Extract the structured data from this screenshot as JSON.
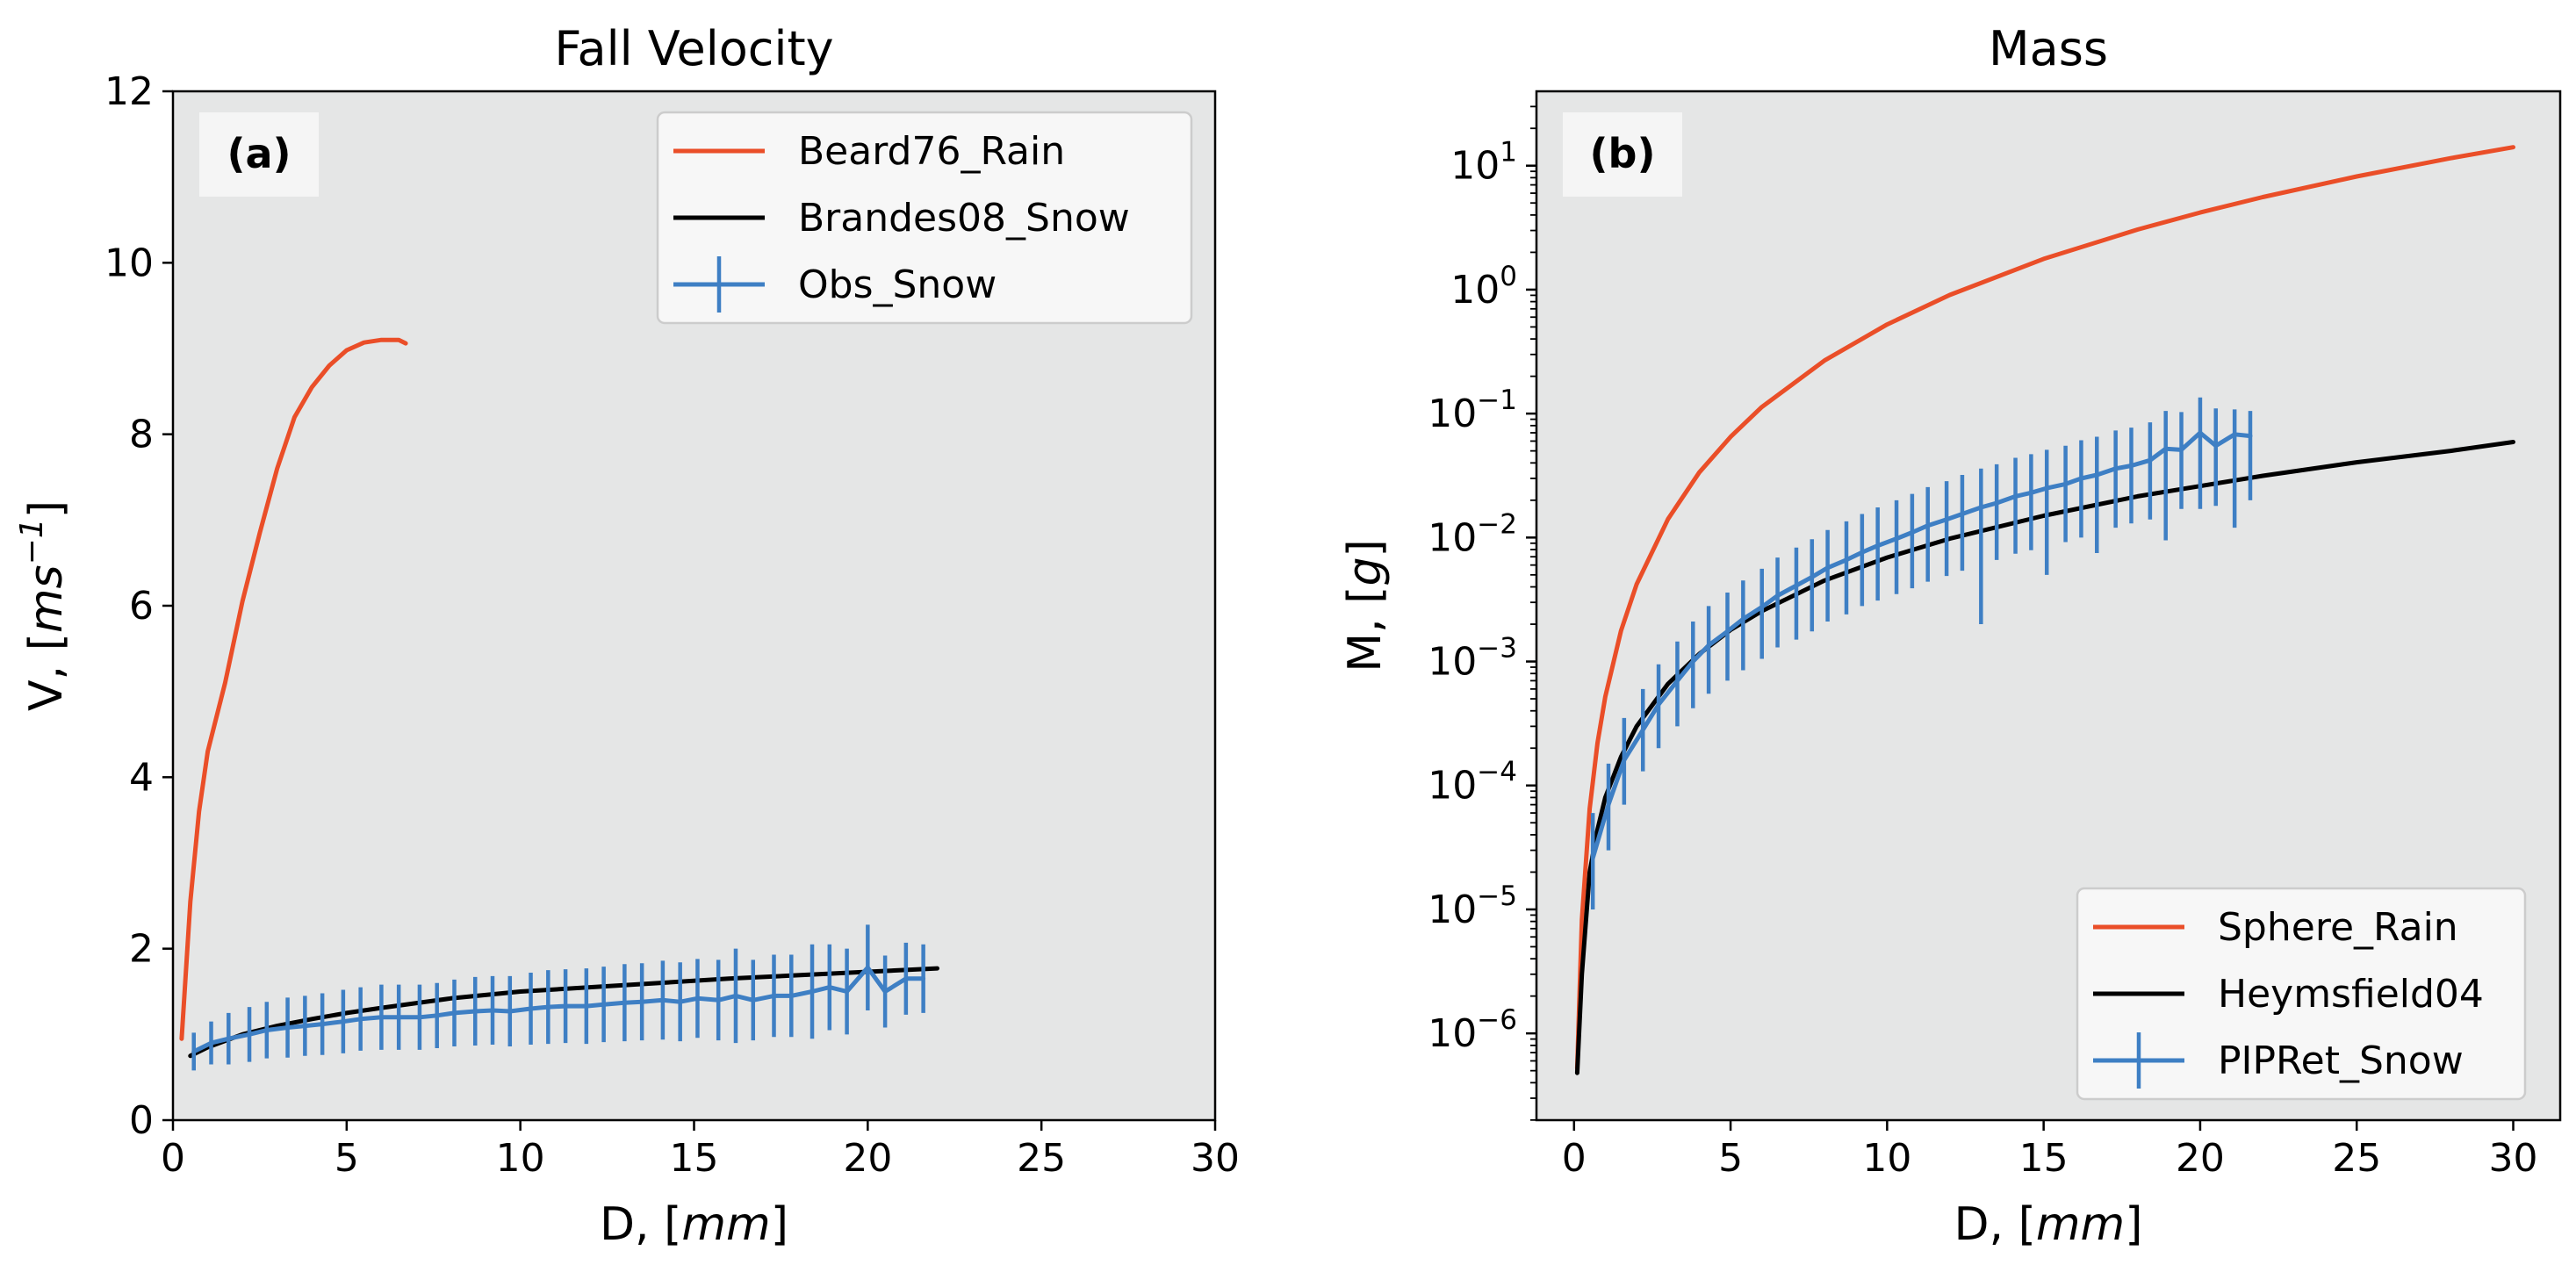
{
  "chart_data": [
    {
      "type": "line",
      "title": "Fall Velocity",
      "panel_label": "(a)",
      "xlabel": {
        "prefix": "D, [",
        "var": "mm",
        "suffix": "]"
      },
      "ylabel": {
        "prefix": "V, [",
        "var": "ms",
        "sup": "−1",
        "suffix": "]"
      },
      "xlim": [
        0,
        30
      ],
      "ylim": [
        0,
        12
      ],
      "xticks": [
        0,
        5,
        10,
        15,
        20,
        25,
        30
      ],
      "xtick_labels": [
        "0",
        "5",
        "10",
        "15",
        "20",
        "25",
        "30"
      ],
      "yticks": [
        0,
        2,
        4,
        6,
        8,
        10,
        12
      ],
      "ytick_labels": [
        "0",
        "2",
        "4",
        "6",
        "8",
        "10",
        "12"
      ],
      "yscale": "linear",
      "legend_position": "top-right",
      "background": "#e5e6e6",
      "series": [
        {
          "name": "Beard76_Rain",
          "color": "#ea4e28",
          "kind": "line",
          "x": [
            0.25,
            0.5,
            0.75,
            1.0,
            1.5,
            2.0,
            2.5,
            3.0,
            3.5,
            4.0,
            4.5,
            5.0,
            5.5,
            6.0,
            6.5,
            6.7
          ],
          "y": [
            0.95,
            2.55,
            3.6,
            4.3,
            5.1,
            6.05,
            6.85,
            7.6,
            8.2,
            8.55,
            8.8,
            8.98,
            9.07,
            9.1,
            9.1,
            9.06
          ]
        },
        {
          "name": "Brandes08_Snow",
          "color": "#000000",
          "kind": "line",
          "x": [
            0.5,
            1.0,
            2.0,
            3.0,
            4.0,
            5.0,
            6.0,
            8.0,
            10.0,
            12.0,
            14.0,
            16.0,
            18.0,
            20.0,
            22.0
          ],
          "y": [
            0.75,
            0.85,
            1.0,
            1.1,
            1.18,
            1.25,
            1.31,
            1.42,
            1.5,
            1.55,
            1.6,
            1.65,
            1.69,
            1.73,
            1.77
          ]
        },
        {
          "name": "Obs_Snow",
          "color": "#3e7fc4",
          "kind": "errorbar",
          "x": [
            0.6,
            1.1,
            1.6,
            2.2,
            2.7,
            3.3,
            3.8,
            4.3,
            4.9,
            5.4,
            6.0,
            6.5,
            7.1,
            7.6,
            8.1,
            8.7,
            9.2,
            9.7,
            10.3,
            10.8,
            11.3,
            11.9,
            12.4,
            13.0,
            13.5,
            14.1,
            14.6,
            15.1,
            15.7,
            16.2,
            16.7,
            17.3,
            17.8,
            18.4,
            18.9,
            19.4,
            20.0,
            20.5,
            21.1,
            21.6
          ],
          "y": [
            0.8,
            0.9,
            0.95,
            1.0,
            1.05,
            1.08,
            1.1,
            1.12,
            1.15,
            1.18,
            1.2,
            1.2,
            1.2,
            1.22,
            1.25,
            1.27,
            1.28,
            1.27,
            1.3,
            1.32,
            1.33,
            1.33,
            1.35,
            1.37,
            1.38,
            1.4,
            1.38,
            1.42,
            1.4,
            1.45,
            1.4,
            1.45,
            1.45,
            1.5,
            1.55,
            1.5,
            1.78,
            1.5,
            1.65,
            1.65
          ],
          "yerr": [
            0.22,
            0.25,
            0.3,
            0.32,
            0.33,
            0.35,
            0.35,
            0.36,
            0.37,
            0.37,
            0.38,
            0.38,
            0.38,
            0.38,
            0.39,
            0.4,
            0.4,
            0.41,
            0.42,
            0.43,
            0.43,
            0.44,
            0.44,
            0.45,
            0.45,
            0.46,
            0.46,
            0.46,
            0.47,
            0.55,
            0.47,
            0.48,
            0.48,
            0.55,
            0.5,
            0.5,
            0.5,
            0.42,
            0.42,
            0.4
          ]
        }
      ]
    },
    {
      "type": "line",
      "title": "Mass",
      "panel_label": "(b)",
      "xlabel": {
        "prefix": "D, [",
        "var": "mm",
        "suffix": "]"
      },
      "ylabel": {
        "prefix": "M, [",
        "var": "g",
        "sup": "",
        "suffix": "]"
      },
      "xlim": [
        -1.2,
        31.5
      ],
      "ylim": [
        -6.7,
        1.6
      ],
      "yscale": "log",
      "xticks": [
        0,
        5,
        10,
        15,
        20,
        25,
        30
      ],
      "xtick_labels": [
        "0",
        "5",
        "10",
        "15",
        "20",
        "25",
        "30"
      ],
      "yticks": [
        -6,
        -5,
        -4,
        -3,
        -2,
        -1,
        0,
        1
      ],
      "ytick_labels": [
        {
          "base": "10",
          "exp": "−6"
        },
        {
          "base": "10",
          "exp": "−5"
        },
        {
          "base": "10",
          "exp": "−4"
        },
        {
          "base": "10",
          "exp": "−3"
        },
        {
          "base": "10",
          "exp": "−2"
        },
        {
          "base": "10",
          "exp": "−1"
        },
        {
          "base": "10",
          "exp": "0"
        },
        {
          "base": "10",
          "exp": "1"
        }
      ],
      "legend_position": "bottom-right",
      "background": "#e5e6e6",
      "series": [
        {
          "name": "Sphere_Rain",
          "color": "#ea4e28",
          "kind": "line",
          "x": [
            0.1,
            0.25,
            0.5,
            0.75,
            1.0,
            1.5,
            2.0,
            3.0,
            4.0,
            5.0,
            6.0,
            8.0,
            10.0,
            12.0,
            15.0,
            18.0,
            20.0,
            22.0,
            25.0,
            28.0,
            30.0
          ],
          "y": [
            5.24e-07,
            8.2e-06,
            6.5e-05,
            0.00022,
            0.00052,
            0.00177,
            0.0042,
            0.0141,
            0.0335,
            0.065,
            0.113,
            0.268,
            0.524,
            0.905,
            1.77,
            3.05,
            4.19,
            5.58,
            8.18,
            11.5,
            14.1
          ]
        },
        {
          "name": "Heymsfield04",
          "color": "#000000",
          "kind": "line",
          "x": [
            0.1,
            0.25,
            0.5,
            0.75,
            1.0,
            1.5,
            2.0,
            3.0,
            4.0,
            5.0,
            6.0,
            8.0,
            10.0,
            12.0,
            15.0,
            18.0,
            20.0,
            22.0,
            25.0,
            28.0,
            30.0
          ],
          "y": [
            4.8e-07,
            3e-06,
            2e-05,
            4.4e-05,
            8e-05,
            0.00017,
            0.0003,
            0.00066,
            0.00115,
            0.0018,
            0.00255,
            0.0045,
            0.0069,
            0.0098,
            0.015,
            0.0215,
            0.026,
            0.0315,
            0.0405,
            0.05,
            0.059
          ]
        },
        {
          "name": "PIPRet_Snow",
          "color": "#3e7fc4",
          "kind": "errorbar",
          "x": [
            0.6,
            1.1,
            1.6,
            2.2,
            2.7,
            3.3,
            3.8,
            4.3,
            4.9,
            5.4,
            6.0,
            6.5,
            7.1,
            7.6,
            8.1,
            8.7,
            9.2,
            9.7,
            10.3,
            10.8,
            11.3,
            11.9,
            12.4,
            13.0,
            13.5,
            14.1,
            14.6,
            15.1,
            15.7,
            16.2,
            16.7,
            17.3,
            17.8,
            18.4,
            18.9,
            19.4,
            20.0,
            20.5,
            21.1,
            21.6
          ],
          "y": [
            2.6e-05,
            7e-05,
            0.00016,
            0.00028,
            0.00045,
            0.0007,
            0.001,
            0.00135,
            0.00175,
            0.0022,
            0.00275,
            0.0034,
            0.0041,
            0.0048,
            0.0057,
            0.0066,
            0.0076,
            0.0086,
            0.0098,
            0.011,
            0.0125,
            0.014,
            0.0155,
            0.0175,
            0.019,
            0.0215,
            0.023,
            0.025,
            0.027,
            0.03,
            0.032,
            0.036,
            0.038,
            0.042,
            0.052,
            0.051,
            0.07,
            0.055,
            0.068,
            0.066
          ],
          "ylo": [
            1e-05,
            3e-05,
            7e-05,
            0.00013,
            0.0002,
            0.0003,
            0.00042,
            0.00055,
            0.0007,
            0.00085,
            0.00105,
            0.0013,
            0.0015,
            0.00175,
            0.0021,
            0.0024,
            0.0028,
            0.0031,
            0.0035,
            0.0039,
            0.0044,
            0.0049,
            0.0054,
            0.002,
            0.0066,
            0.0074,
            0.0079,
            0.005,
            0.0092,
            0.01,
            0.0075,
            0.012,
            0.013,
            0.014,
            0.0095,
            0.017,
            0.017,
            0.018,
            0.012,
            0.02
          ],
          "yhi": [
            6e-05,
            0.00015,
            0.00035,
            0.0006,
            0.00095,
            0.00145,
            0.0021,
            0.0028,
            0.0036,
            0.0045,
            0.0056,
            0.0069,
            0.0083,
            0.0097,
            0.0115,
            0.0135,
            0.0155,
            0.0175,
            0.02,
            0.0225,
            0.0255,
            0.0285,
            0.032,
            0.036,
            0.039,
            0.044,
            0.047,
            0.051,
            0.055,
            0.061,
            0.065,
            0.073,
            0.077,
            0.085,
            0.105,
            0.103,
            0.135,
            0.11,
            0.108,
            0.105
          ]
        }
      ]
    }
  ]
}
